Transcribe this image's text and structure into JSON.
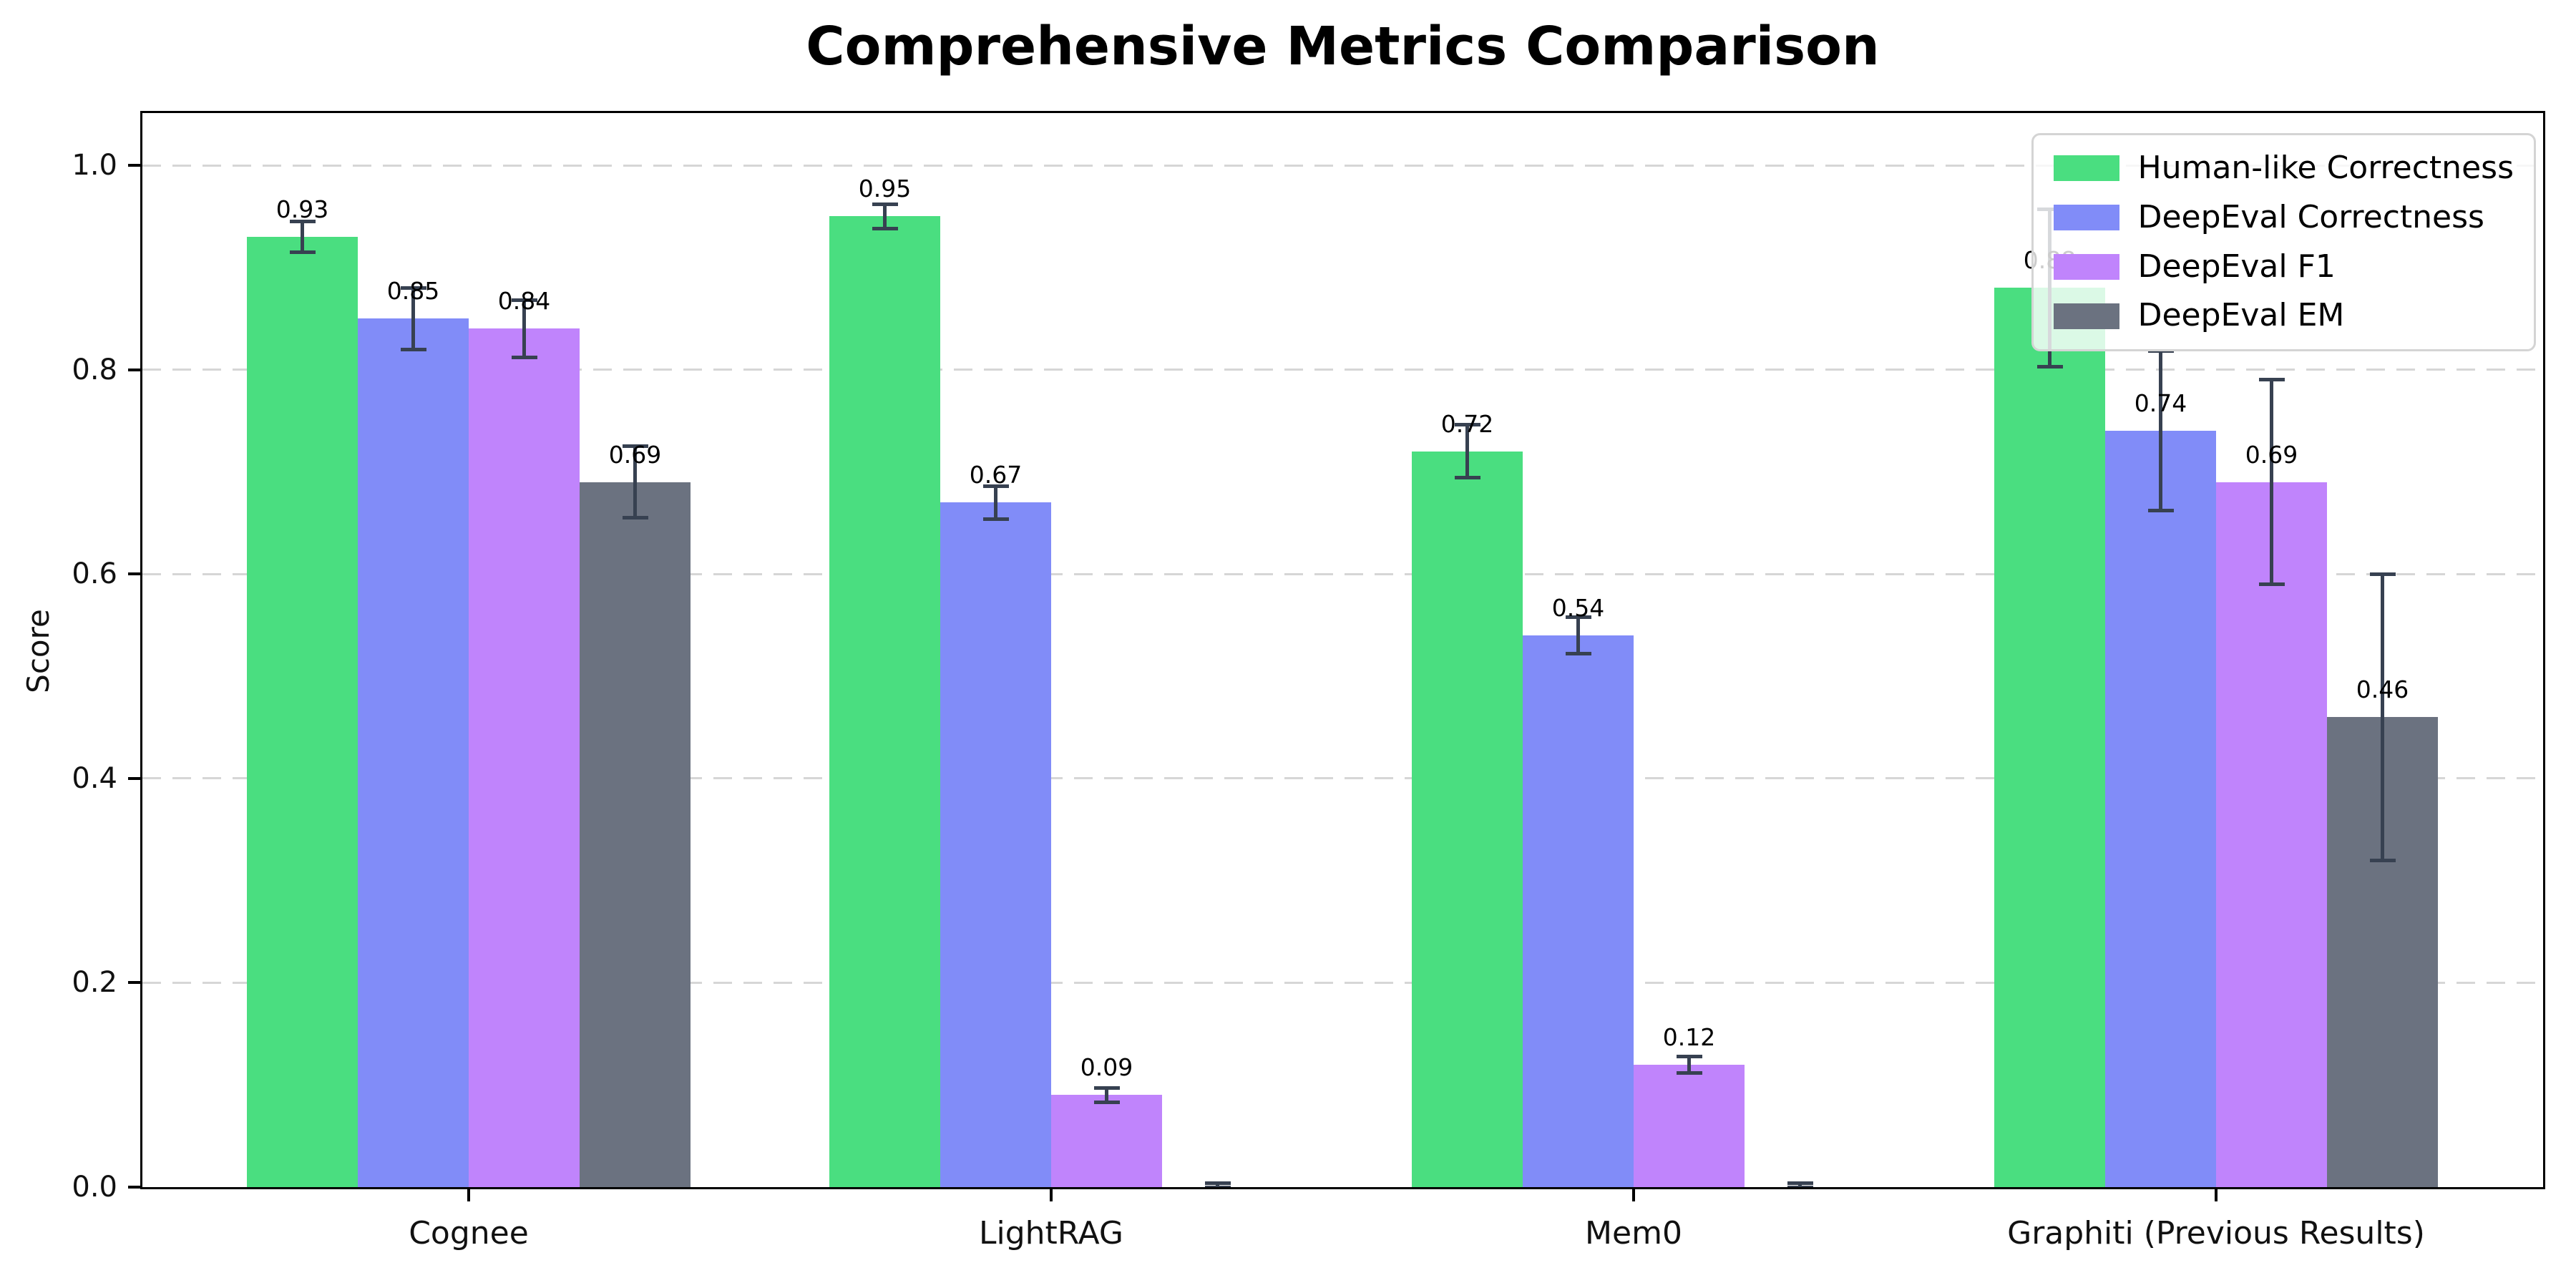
{
  "chart_data": {
    "type": "bar",
    "title": "Comprehensive Metrics Comparison",
    "xlabel": "",
    "ylabel": "Score",
    "categories": [
      "Cognee",
      "LightRAG",
      "Mem0",
      "Graphiti (Previous Results)"
    ],
    "series": [
      {
        "name": "Human-like Correctness",
        "color": "#4ade80",
        "values": [
          0.93,
          0.95,
          0.72,
          0.88
        ],
        "errors": [
          0.015,
          0.012,
          0.026,
          0.077
        ],
        "labels": [
          "0.93",
          "0.95",
          "0.72",
          "0.88"
        ]
      },
      {
        "name": "DeepEval Correctness",
        "color": "#818cf8",
        "values": [
          0.85,
          0.67,
          0.54,
          0.74
        ],
        "errors": [
          0.03,
          0.016,
          0.018,
          0.078
        ],
        "labels": [
          "0.85",
          "0.67",
          "0.54",
          "0.74"
        ]
      },
      {
        "name": "DeepEval F1",
        "color": "#c084fc",
        "values": [
          0.84,
          0.09,
          0.12,
          0.69
        ],
        "errors": [
          0.028,
          0.007,
          0.008,
          0.1
        ],
        "labels": [
          "0.84",
          "0.09",
          "0.12",
          "0.69"
        ]
      },
      {
        "name": "DeepEval EM",
        "color": "#6b7280",
        "values": [
          0.69,
          0.0,
          0.0,
          0.46
        ],
        "errors": [
          0.035,
          0.004,
          0.004,
          0.14
        ],
        "labels": [
          "0.69",
          "",
          "",
          "0.46"
        ]
      }
    ],
    "yticks": [
      {
        "label": "0.0",
        "value": 0.0
      },
      {
        "label": "0.2",
        "value": 0.2
      },
      {
        "label": "0.4",
        "value": 0.4
      },
      {
        "label": "0.6",
        "value": 0.6
      },
      {
        "label": "0.8",
        "value": 0.8
      },
      {
        "label": "1.0",
        "value": 1.0
      }
    ],
    "ylim": [
      0,
      1.055
    ],
    "grid": "horizontal dashed",
    "grid_color": "#d6d6d6",
    "error_bar_color": "#374151",
    "legend_position": "upper right"
  }
}
